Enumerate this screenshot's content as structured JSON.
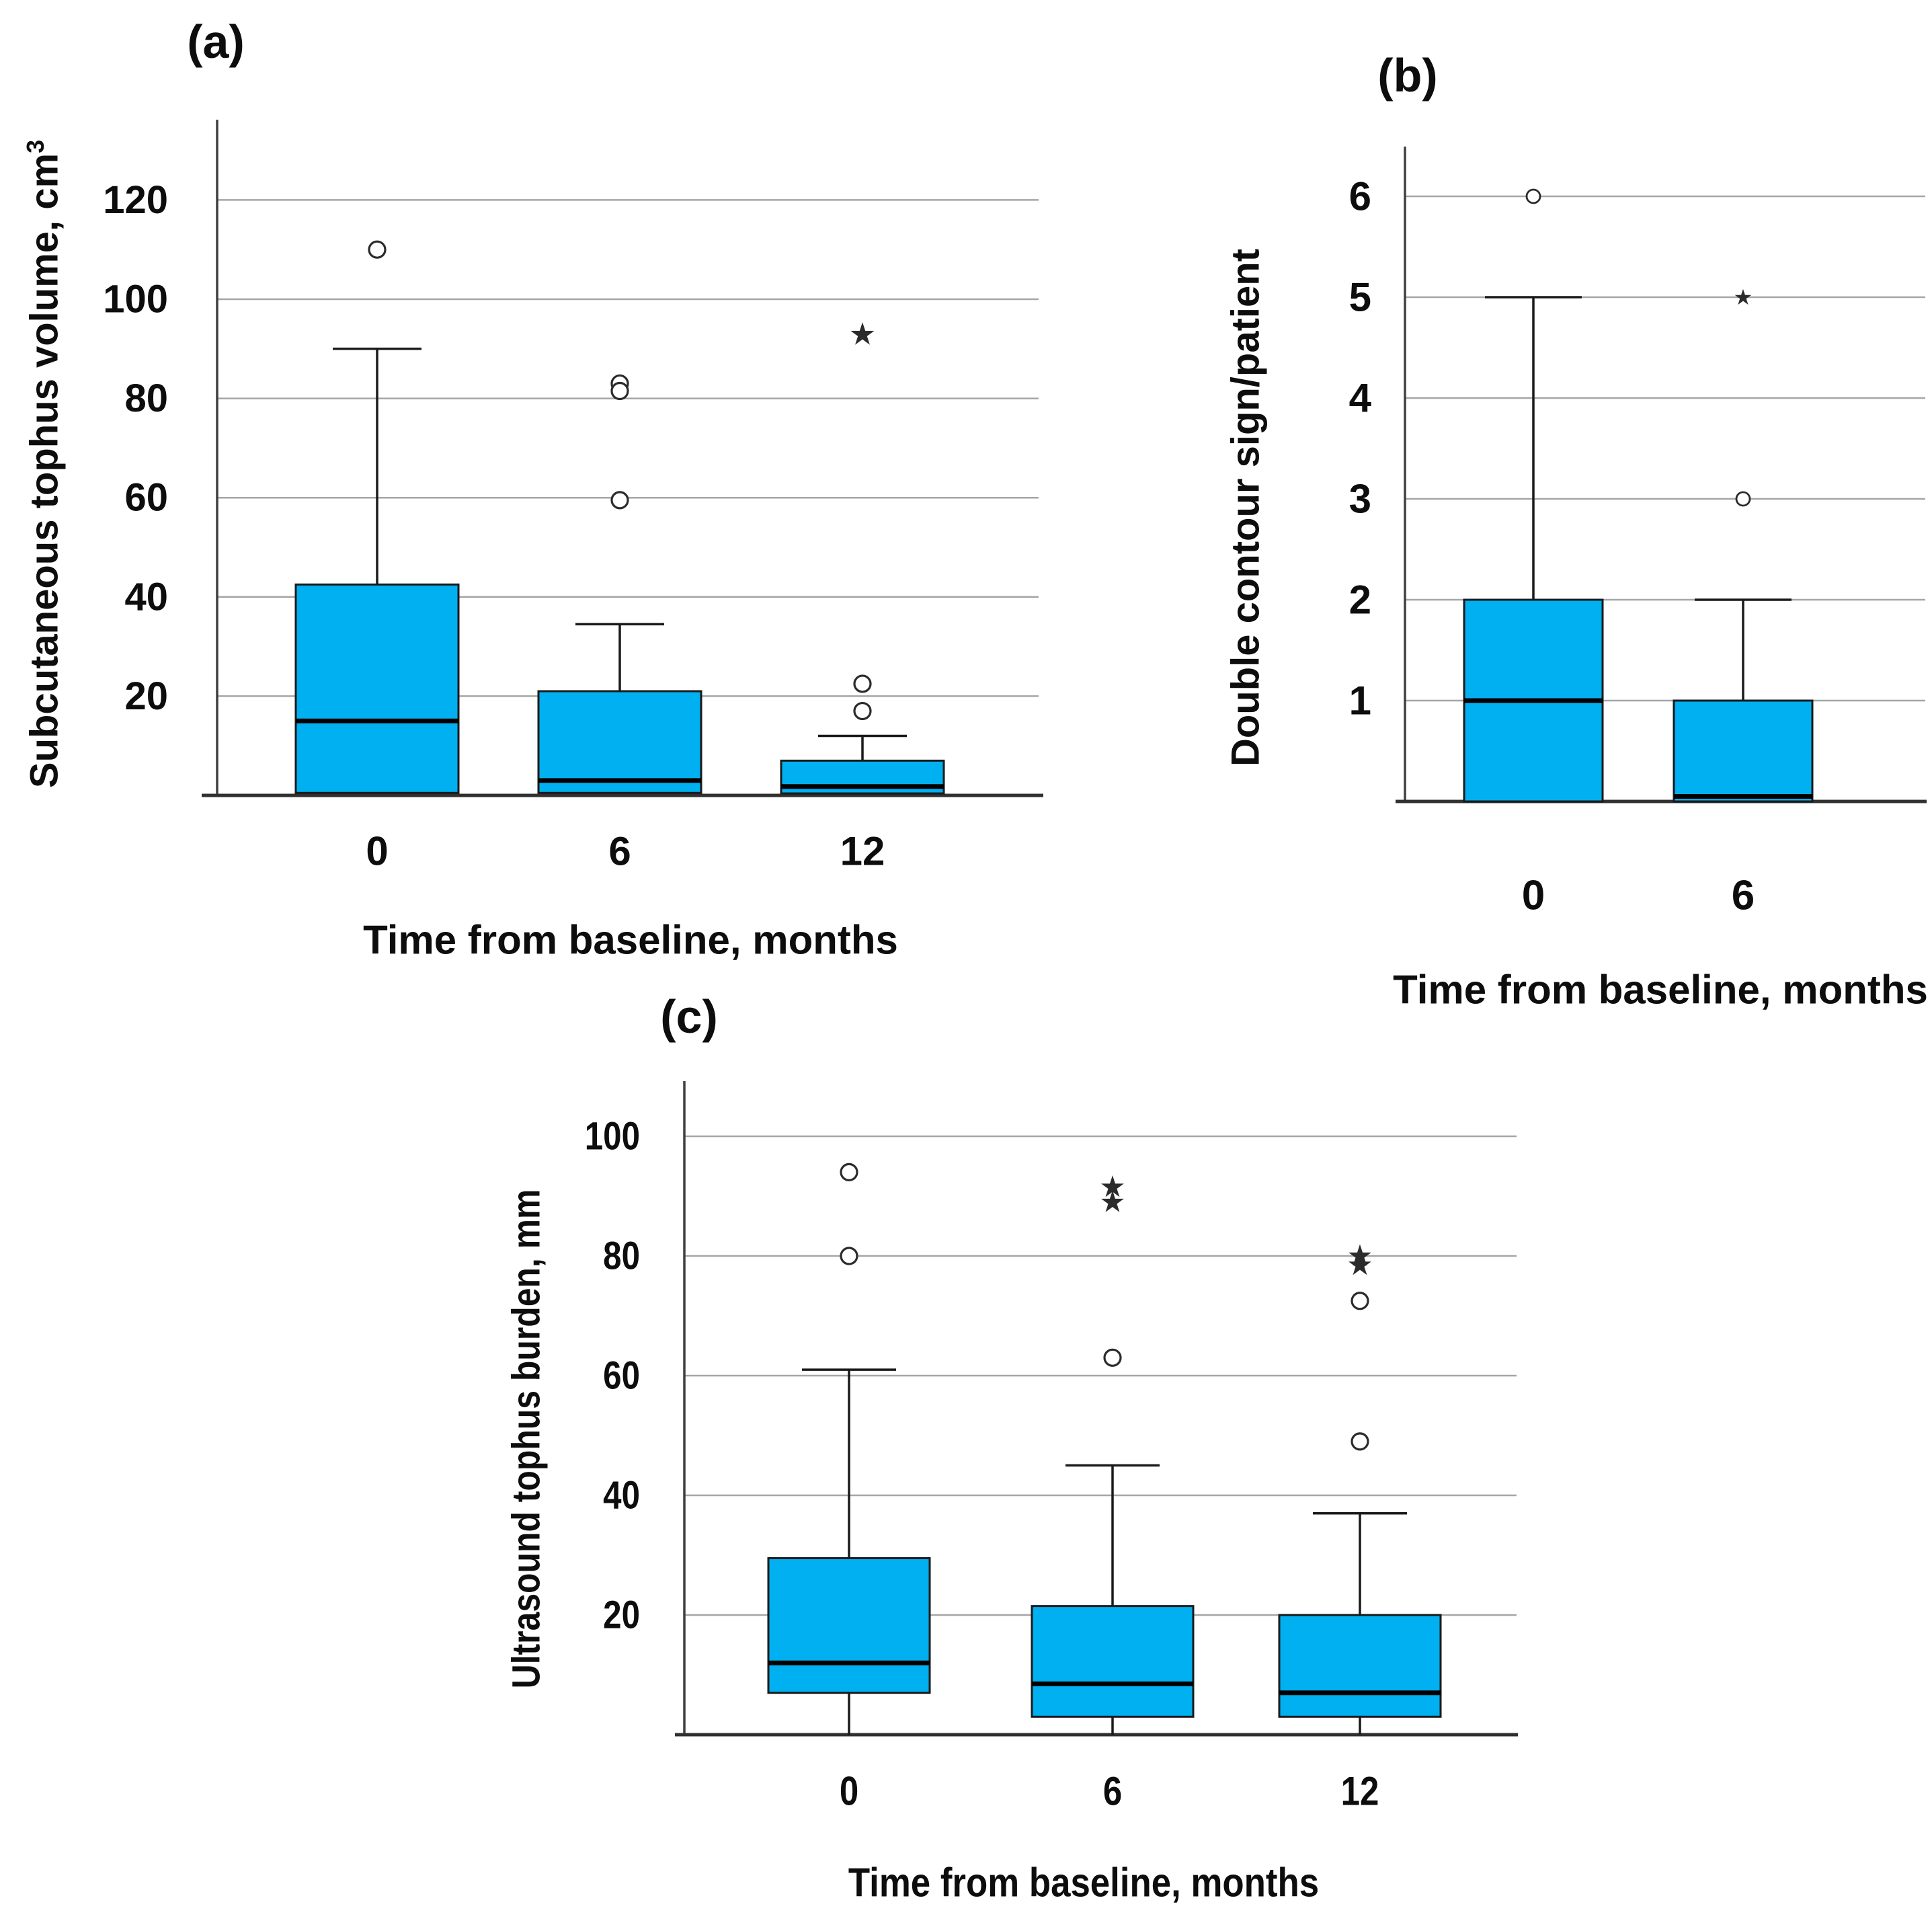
{
  "figure": {
    "type": "three-panel boxplot figure",
    "colors": {
      "background": "#ffffff",
      "box_fill": "#00B0F0",
      "box_stroke": "#1a1a1a",
      "median": "#000000",
      "grid": "#a6a6a6",
      "axis": "#3f3f3f",
      "outlier": "#2b2b2b",
      "text": "#0d0d0d"
    },
    "marker_legend": {
      "circle": "mild outlier",
      "star": "extreme outlier"
    }
  },
  "chart_data": [
    {
      "type": "box",
      "panel": "a",
      "label": "(a)",
      "ylabel": "Subcutaneous tophus volume, cm",
      "ylabel_sup": "3",
      "xlabel": "Time from baseline, months",
      "ylim": [
        0,
        136
      ],
      "yticks": [
        20,
        40,
        60,
        80,
        100,
        120
      ],
      "grid": true,
      "legend": "none",
      "categories": [
        "0",
        "6",
        "12"
      ],
      "boxes": [
        {
          "category": "0",
          "q1": 0.5,
          "median": 15,
          "q3": 42.5,
          "whisker_low": null,
          "whisker_high": 90,
          "outliers": [
            {
              "value": 110,
              "marker": "circle"
            }
          ]
        },
        {
          "category": "6",
          "q1": 0.5,
          "median": 3,
          "q3": 21,
          "whisker_low": null,
          "whisker_high": 34.5,
          "outliers": [
            {
              "value": 83,
              "marker": "circle"
            },
            {
              "value": 81.5,
              "marker": "circle"
            },
            {
              "value": 59.5,
              "marker": "circle"
            }
          ]
        },
        {
          "category": "12",
          "q1": 0.4,
          "median": 1.8,
          "q3": 7,
          "whisker_low": null,
          "whisker_high": 12,
          "outliers": [
            {
              "value": 93,
              "marker": "star"
            },
            {
              "value": 22.5,
              "marker": "circle"
            },
            {
              "value": 17,
              "marker": "circle"
            }
          ]
        }
      ]
    },
    {
      "type": "box",
      "panel": "b",
      "label": "(b)",
      "ylabel": "Double contour sign/patient",
      "xlabel": "Time from baseline, months",
      "ylim": [
        0,
        6.6
      ],
      "yticks": [
        1,
        2,
        3,
        4,
        5,
        6
      ],
      "grid": true,
      "legend": "none",
      "categories": [
        "0",
        "6"
      ],
      "boxes": [
        {
          "category": "0",
          "q1": 0,
          "median": 1,
          "q3": 2,
          "whisker_low": null,
          "whisker_high": 5,
          "outliers": [
            {
              "value": 6,
              "marker": "circle"
            }
          ]
        },
        {
          "category": "6",
          "q1": 0,
          "median": 0.05,
          "q3": 1,
          "whisker_low": null,
          "whisker_high": 2,
          "outliers": [
            {
              "value": 5,
              "marker": "star"
            },
            {
              "value": 3,
              "marker": "circle"
            }
          ]
        }
      ]
    },
    {
      "type": "box",
      "panel": "c",
      "label": "(c)",
      "ylabel": "Ultrasound tophus burden, mm",
      "xlabel": "Time from baseline, months",
      "ylim": [
        0,
        109
      ],
      "yticks": [
        20,
        40,
        60,
        80,
        100
      ],
      "grid": true,
      "legend": "none",
      "categories": [
        "0",
        "6",
        "12"
      ],
      "boxes": [
        {
          "category": "0",
          "q1": 7,
          "median": 12,
          "q3": 29.5,
          "whisker_low": 0,
          "whisker_high": 61,
          "outliers": [
            {
              "value": 94,
              "marker": "circle"
            },
            {
              "value": 80,
              "marker": "circle"
            }
          ]
        },
        {
          "category": "6",
          "q1": 3,
          "median": 8.5,
          "q3": 21.5,
          "whisker_low": 0,
          "whisker_high": 45,
          "outliers": [
            {
              "value": 91.5,
              "marker": "star"
            },
            {
              "value": 89,
              "marker": "star"
            },
            {
              "value": 63,
              "marker": "circle"
            }
          ]
        },
        {
          "category": "12",
          "q1": 3,
          "median": 7,
          "q3": 20,
          "whisker_low": 0,
          "whisker_high": 37,
          "outliers": [
            {
              "value": 80,
              "marker": "star"
            },
            {
              "value": 78.5,
              "marker": "star"
            },
            {
              "value": 72.5,
              "marker": "circle"
            },
            {
              "value": 49,
              "marker": "circle"
            }
          ]
        }
      ]
    }
  ]
}
